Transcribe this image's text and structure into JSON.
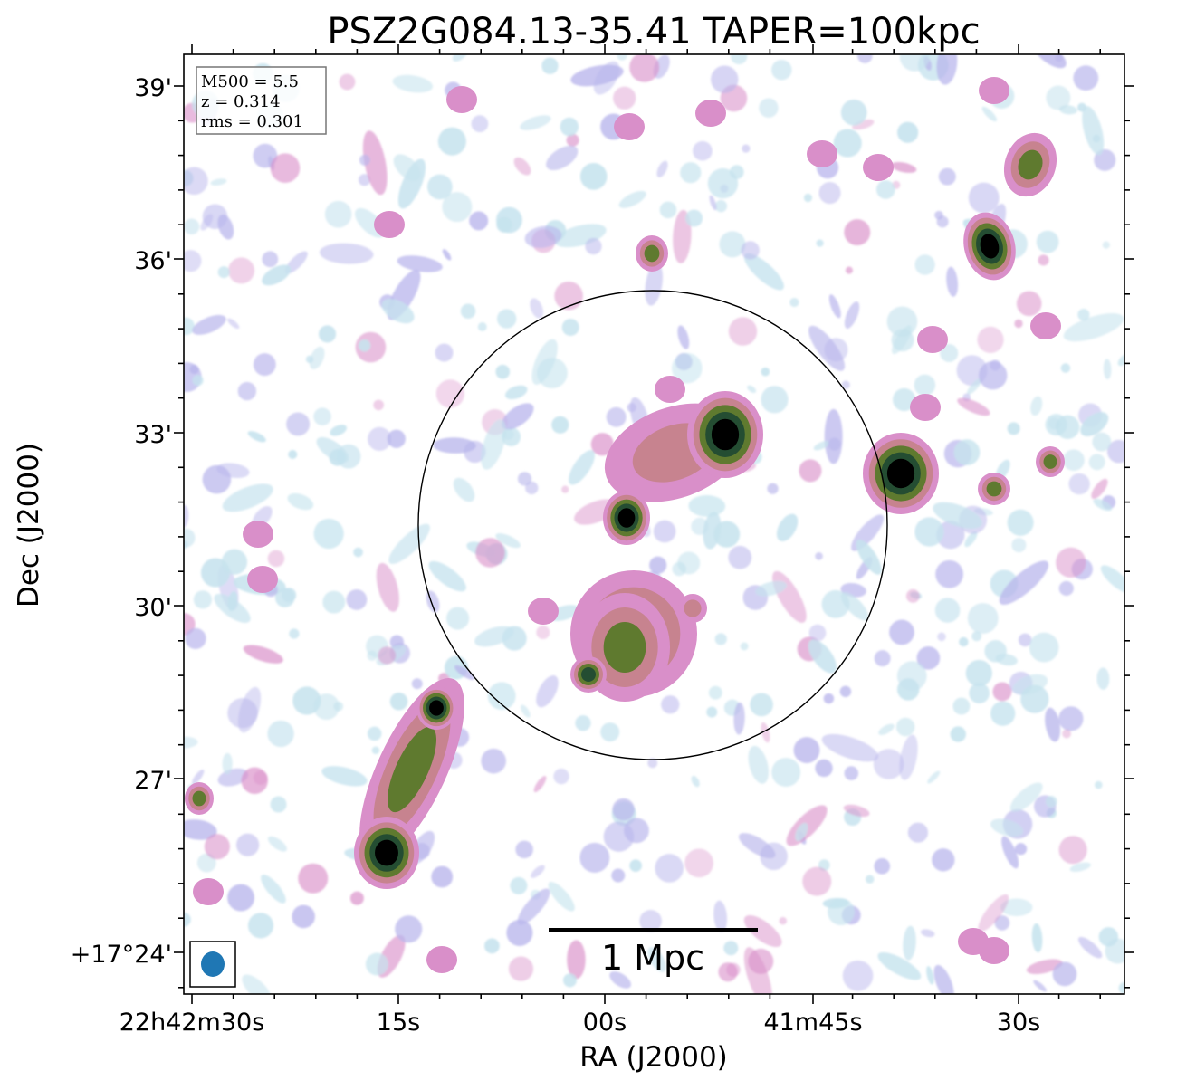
{
  "chart_data": {
    "type": "heatmap",
    "title": "PSZ2G084.13-35.41 TAPER=100kpc",
    "xlabel": "RA (J2000)",
    "ylabel": "Dec (J2000)",
    "x_ticks": [
      "22h42m30s",
      "15s",
      "00s",
      "41m45s",
      "30s"
    ],
    "y_ticks": [
      "39'",
      "36'",
      "33'",
      "30'",
      "27'",
      "+17°24'"
    ],
    "info_box": [
      "M500 = 5.5",
      "z = 0.314",
      "rms = 0.301"
    ],
    "scalebar_label": "1 Mpc",
    "beam_color": "#1f77b4",
    "colormap": [
      "#ffffff",
      "#c6e3ee",
      "#b9b6ec",
      "#d98fc9",
      "#c7838f",
      "#5f7a2f",
      "#244d32",
      "#000000"
    ],
    "grid": false
  }
}
